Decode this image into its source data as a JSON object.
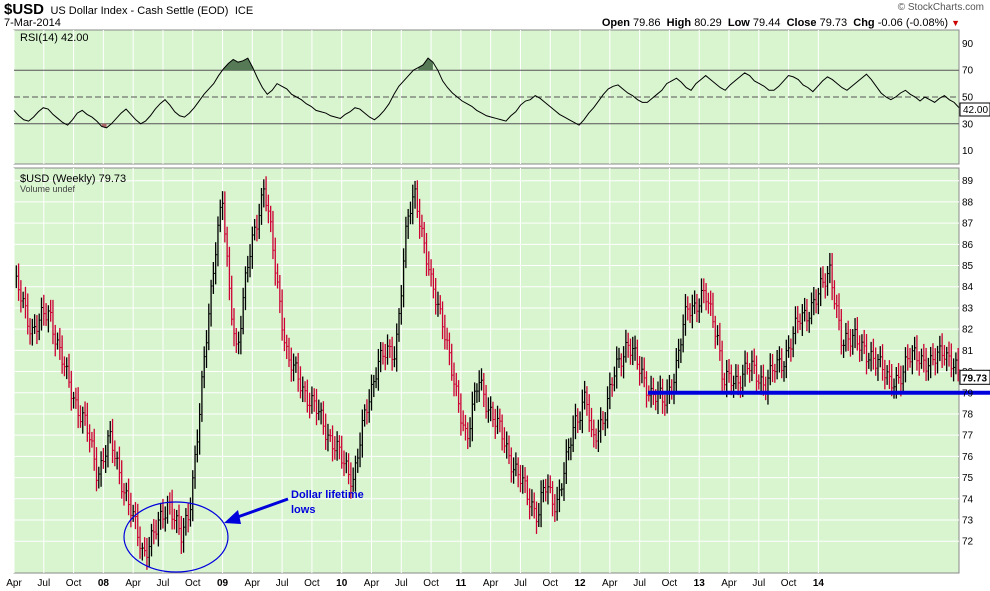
{
  "header": {
    "symbol": "$USD",
    "title": "US Dollar Index - Cash Settle (EOD)",
    "exchange": "ICE",
    "date": "7-Mar-2014",
    "brand": "© StockCharts.com",
    "open_label": "Open",
    "open": "79.86",
    "high_label": "High",
    "high": "80.29",
    "low_label": "Low",
    "low": "79.44",
    "close_label": "Close",
    "close": "79.73",
    "chg_label": "Chg",
    "chg": "-0.06 (-0.08%)"
  },
  "colors": {
    "background": "#d9f5d0",
    "up_bar": "#000000",
    "down_bar": "#cc0033",
    "rsi_line": "#000000",
    "overbought_fill": "#557a55",
    "oversold_fill": "#aa6666",
    "support_line": "#0000dd",
    "annotation": "#0000dd"
  },
  "chart_data": [
    {
      "type": "line",
      "title": "RSI(14) 42.00",
      "indicator": "RSI(14)",
      "last_value": "42.00",
      "ylim": [
        0,
        100
      ],
      "y_ticks": [
        10,
        30,
        50,
        70,
        90
      ],
      "reference_lines": [
        30,
        50,
        70
      ],
      "x_start": 2006.25,
      "x_end": 2014.18,
      "grid": true,
      "y": [
        40,
        36,
        33,
        32,
        35,
        39,
        42,
        41,
        37,
        34,
        31,
        29,
        33,
        38,
        40,
        37,
        35,
        32,
        28,
        27,
        30,
        34,
        38,
        41,
        37,
        33,
        30,
        32,
        36,
        41,
        45,
        48,
        44,
        39,
        36,
        35,
        38,
        42,
        47,
        52,
        56,
        60,
        66,
        71,
        75,
        78,
        76,
        77,
        79,
        72,
        64,
        57,
        52,
        55,
        60,
        58,
        56,
        52,
        50,
        48,
        45,
        43,
        40,
        39,
        38,
        36,
        35,
        34,
        37,
        39,
        42,
        41,
        38,
        35,
        33,
        36,
        40,
        45,
        52,
        58,
        62,
        66,
        70,
        72,
        74,
        79,
        76,
        70,
        62,
        57,
        53,
        50,
        47,
        45,
        43,
        40,
        38,
        36,
        35,
        34,
        33,
        32,
        36,
        39,
        44,
        47,
        48,
        51,
        49,
        46,
        43,
        40,
        37,
        35,
        33,
        31,
        29,
        33,
        38,
        42,
        47,
        52,
        56,
        58,
        59,
        56,
        53,
        51,
        48,
        46,
        46,
        49,
        52,
        55,
        60,
        62,
        64,
        61,
        57,
        55,
        60,
        63,
        66,
        63,
        60,
        57,
        55,
        59,
        62,
        65,
        68,
        66,
        62,
        60,
        58,
        55,
        55,
        58,
        62,
        66,
        65,
        63,
        59,
        57,
        54,
        58,
        62,
        65,
        63,
        60,
        57,
        55,
        58,
        61,
        64,
        67,
        63,
        58,
        53,
        50,
        48,
        50,
        53,
        55,
        52,
        50,
        47,
        50,
        48,
        46,
        49,
        51,
        48,
        46,
        42
      ]
    },
    {
      "type": "bar",
      "subtype": "ohlc",
      "title": "$USD (Weekly) 79.73",
      "series_label": "$USD (Weekly)",
      "last_value": "79.73",
      "volume_label": "Volume undef",
      "ylim": [
        70.5,
        89.6
      ],
      "y_ticks": [
        72,
        73,
        74,
        75,
        76,
        77,
        78,
        79,
        80,
        81,
        82,
        83,
        84,
        85,
        86,
        87,
        88,
        89
      ],
      "x_start": 2006.25,
      "x_end": 2014.18,
      "x_tick_labels": [
        {
          "t": 2006.25,
          "label": "Apr"
        },
        {
          "t": 2006.5,
          "label": "Jul"
        },
        {
          "t": 2006.75,
          "label": "Oct"
        },
        {
          "t": 2007.0,
          "label": "08"
        },
        {
          "t": 2007.25,
          "label": "Apr"
        },
        {
          "t": 2007.5,
          "label": "Jul"
        },
        {
          "t": 2007.75,
          "label": "Oct"
        },
        {
          "t": 2008.0,
          "label": "09"
        },
        {
          "t": 2008.25,
          "label": "Apr"
        },
        {
          "t": 2008.5,
          "label": "Jul"
        },
        {
          "t": 2008.75,
          "label": "Oct"
        },
        {
          "t": 2009.0,
          "label": "10"
        },
        {
          "t": 2009.25,
          "label": "Apr"
        },
        {
          "t": 2009.5,
          "label": "Jul"
        },
        {
          "t": 2009.75,
          "label": "Oct"
        },
        {
          "t": 2010.0,
          "label": "11"
        },
        {
          "t": 2010.25,
          "label": "Apr"
        },
        {
          "t": 2010.5,
          "label": "Jul"
        },
        {
          "t": 2010.75,
          "label": "Oct"
        },
        {
          "t": 2011.0,
          "label": "12"
        },
        {
          "t": 2011.25,
          "label": "Apr"
        },
        {
          "t": 2011.5,
          "label": "Jul"
        },
        {
          "t": 2011.75,
          "label": "Oct"
        },
        {
          "t": 2012.0,
          "label": "13"
        },
        {
          "t": 2012.25,
          "label": "Apr"
        },
        {
          "t": 2012.5,
          "label": "Jul"
        },
        {
          "t": 2012.75,
          "label": "Oct"
        },
        {
          "t": 2013.0,
          "label": "14"
        }
      ],
      "key_points": [
        [
          2006.25,
          84.3
        ],
        [
          2006.4,
          82.0
        ],
        [
          2006.55,
          82.8
        ],
        [
          2006.7,
          79.5
        ],
        [
          2006.85,
          77.5
        ],
        [
          2006.95,
          75.2
        ],
        [
          2007.05,
          76.8
        ],
        [
          2007.15,
          75.0
        ],
        [
          2007.25,
          73.0
        ],
        [
          2007.33,
          71.5
        ],
        [
          2007.45,
          72.5
        ],
        [
          2007.55,
          74.0
        ],
        [
          2007.65,
          72.0
        ],
        [
          2007.72,
          73.5
        ],
        [
          2007.8,
          77.5
        ],
        [
          2007.88,
          82.5
        ],
        [
          2007.95,
          86.5
        ],
        [
          2008.0,
          88.0
        ],
        [
          2008.05,
          84.0
        ],
        [
          2008.12,
          81.0
        ],
        [
          2008.2,
          84.5
        ],
        [
          2008.28,
          87.0
        ],
        [
          2008.35,
          88.8
        ],
        [
          2008.45,
          84.5
        ],
        [
          2008.55,
          80.5
        ],
        [
          2008.7,
          79.0
        ],
        [
          2008.85,
          77.5
        ],
        [
          2009.0,
          75.8
        ],
        [
          2009.1,
          75.0
        ],
        [
          2009.2,
          78.0
        ],
        [
          2009.3,
          80.5
        ],
        [
          2009.45,
          81.0
        ],
        [
          2009.55,
          87.0
        ],
        [
          2009.62,
          88.5
        ],
        [
          2009.75,
          84.0
        ],
        [
          2009.85,
          82.5
        ],
        [
          2009.95,
          79.0
        ],
        [
          2010.05,
          77.0
        ],
        [
          2010.15,
          79.5
        ],
        [
          2010.3,
          77.5
        ],
        [
          2010.45,
          75.5
        ],
        [
          2010.55,
          74.2
        ],
        [
          2010.65,
          73.3
        ],
        [
          2010.7,
          74.5
        ],
        [
          2010.8,
          73.8
        ],
        [
          2010.9,
          76.0
        ],
        [
          2010.95,
          77.5
        ],
        [
          2011.05,
          79.0
        ],
        [
          2011.1,
          76.5
        ],
        [
          2011.2,
          78.0
        ],
        [
          2011.3,
          80.0
        ],
        [
          2011.4,
          81.5
        ],
        [
          2011.5,
          80.0
        ],
        [
          2011.6,
          79.0
        ],
        [
          2011.7,
          78.5
        ],
        [
          2011.8,
          80.0
        ],
        [
          2011.9,
          83.0
        ],
        [
          2012.05,
          83.5
        ],
        [
          2012.15,
          82.0
        ],
        [
          2012.2,
          79.5
        ],
        [
          2012.3,
          79.5
        ],
        [
          2012.4,
          80.2
        ],
        [
          2012.55,
          79.5
        ],
        [
          2012.7,
          80.5
        ],
        [
          2012.85,
          82.5
        ],
        [
          2013.0,
          83.5
        ],
        [
          2013.1,
          85.0
        ],
        [
          2013.2,
          81.0
        ],
        [
          2013.3,
          82.0
        ],
        [
          2013.4,
          80.5
        ],
        [
          2013.5,
          80.8
        ],
        [
          2013.6,
          79.2
        ],
        [
          2013.75,
          80.5
        ],
        [
          2013.85,
          80.8
        ],
        [
          2013.95,
          80.2
        ],
        [
          2014.05,
          81.2
        ],
        [
          2014.15,
          80.0
        ],
        [
          2014.18,
          79.73
        ]
      ],
      "support_level": 79.0,
      "support_range": [
        2011.57,
        2014.18
      ]
    }
  ],
  "annotation": {
    "text_line1": "Dollar lifetime",
    "text_line2": "lows"
  }
}
